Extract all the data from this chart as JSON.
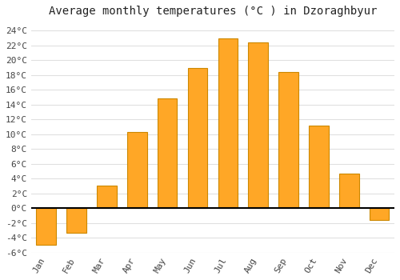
{
  "title": "Average monthly temperatures (°C ) in Dzoraghbyur",
  "months": [
    "Jan",
    "Feb",
    "Mar",
    "Apr",
    "May",
    "Jun",
    "Jul",
    "Aug",
    "Sep",
    "Oct",
    "Nov",
    "Dec"
  ],
  "values": [
    -5.0,
    -3.3,
    3.0,
    10.3,
    14.8,
    19.0,
    23.0,
    22.4,
    18.4,
    11.2,
    4.7,
    -1.6
  ],
  "bar_color": "#FFA726",
  "bar_edge_color": "#CC8800",
  "background_color": "#FFFFFF",
  "plot_bg_color": "#FFFFFF",
  "ylim": [
    -6,
    25
  ],
  "yticks": [
    -6,
    -4,
    -2,
    0,
    2,
    4,
    6,
    8,
    10,
    12,
    14,
    16,
    18,
    20,
    22,
    24
  ],
  "title_fontsize": 10,
  "tick_fontsize": 8,
  "grid_color": "#E0E0E0"
}
